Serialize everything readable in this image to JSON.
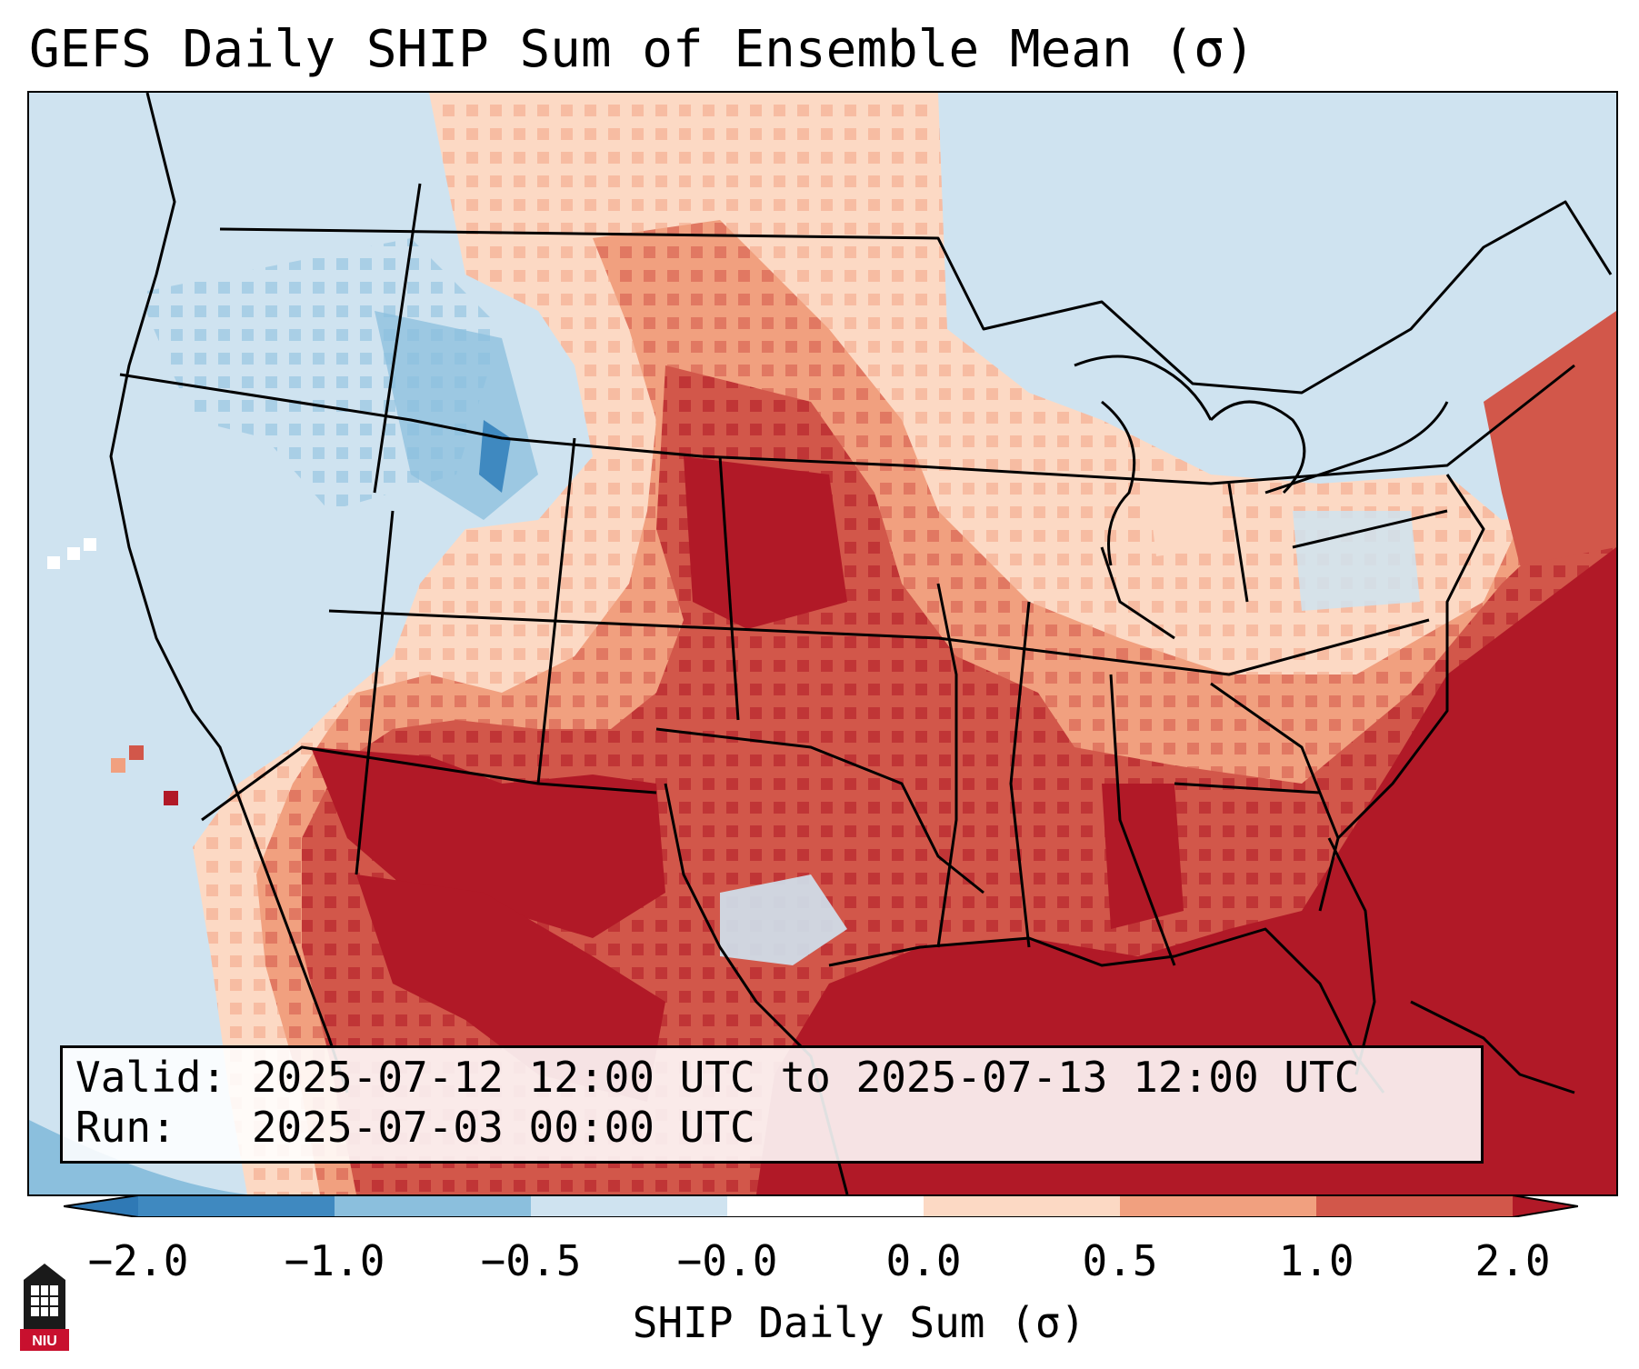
{
  "title": "GEFS Daily SHIP Sum of Ensemble Mean (σ)",
  "info": {
    "valid_line": "Valid: 2025-07-12 12:00 UTC to 2025-07-13 12:00 UTC",
    "run_line": "Run:   2025-07-03 00:00 UTC"
  },
  "colorbar": {
    "title": "SHIP Daily Sum (σ)",
    "ticks": [
      "−2.0",
      "−1.0",
      "−0.5",
      "−0.0",
      "0.0",
      "0.5",
      "1.0",
      "2.0"
    ],
    "bins": [
      {
        "range": "< -2.0",
        "color": "#2f79b5"
      },
      {
        "range": "-2.0 to -1.0",
        "color": "#3f89c0"
      },
      {
        "range": "-1.0 to -0.5",
        "color": "#8bbfdd"
      },
      {
        "range": "-0.5 to -0.0",
        "color": "#cfe3f0"
      },
      {
        "range": "0",
        "color": "#ffffff"
      },
      {
        "range": "0.0 to 0.5",
        "color": "#fcd9c4"
      },
      {
        "range": "0.5 to 1.0",
        "color": "#f1a07f"
      },
      {
        "range": "1.0 to 2.0",
        "color": "#d2574a"
      },
      {
        "range": "> 2.0",
        "color": "#b11927"
      }
    ]
  },
  "logo_text": "NIU"
}
